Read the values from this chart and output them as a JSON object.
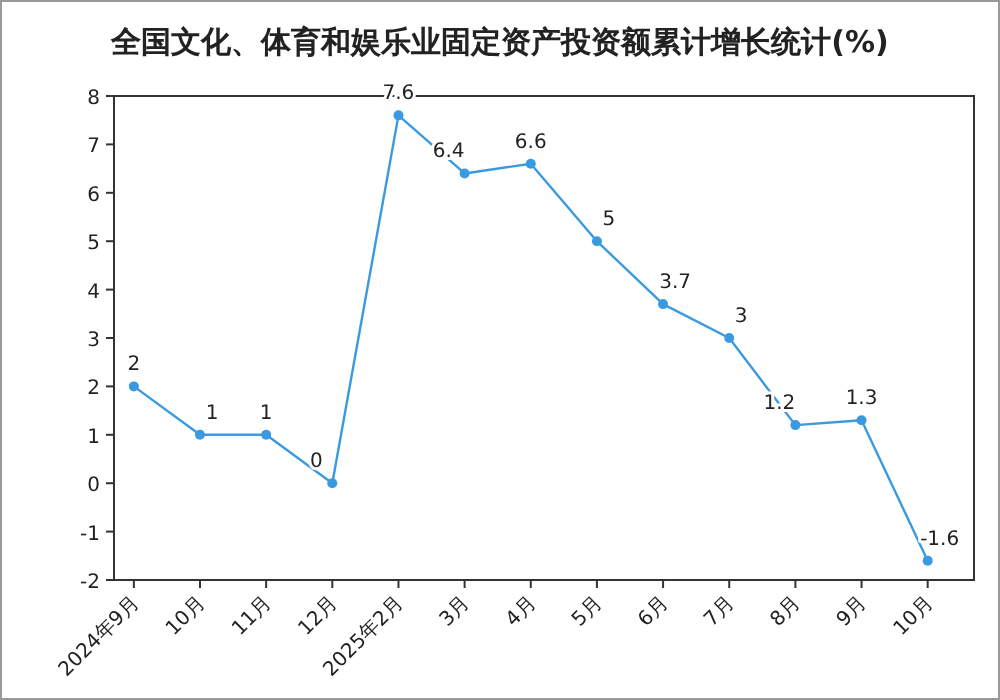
{
  "chart_data": {
    "type": "line",
    "title": "全国文化、体育和娱乐业固定资产投资额累计增长统计(%)",
    "categories": [
      "2024年9月",
      "10月",
      "11月",
      "12月",
      "2025年2月",
      "3月",
      "4月",
      "5月",
      "6月",
      "7月",
      "8月",
      "9月",
      "10月"
    ],
    "values": [
      2,
      1,
      1,
      0,
      7.6,
      6.4,
      6.6,
      5,
      3.7,
      3,
      1.2,
      1.3,
      -1.6
    ],
    "color": "#3a9ae0",
    "ylim": [
      -2,
      8
    ],
    "yticks": [
      -2,
      -1,
      0,
      1,
      2,
      3,
      4,
      5,
      6,
      7,
      8
    ],
    "data_labels": true,
    "marker": "circle",
    "grid": false
  }
}
